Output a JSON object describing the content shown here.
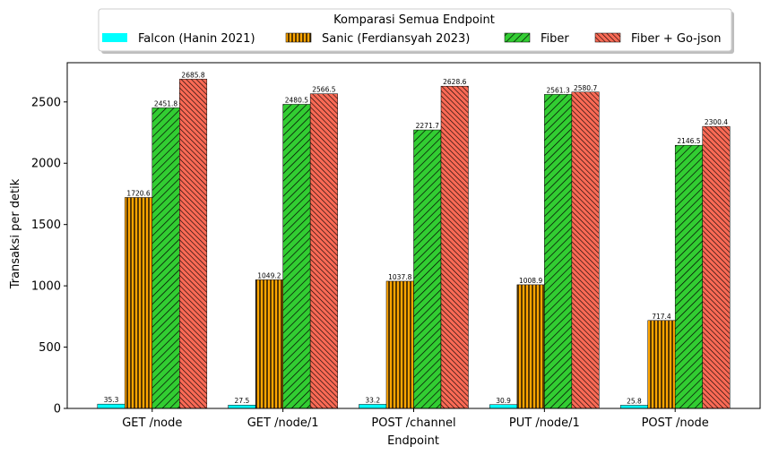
{
  "chart_data": {
    "type": "bar",
    "title": "",
    "xlabel": "Endpoint",
    "ylabel": "Transaksi per detik",
    "categories": [
      "GET /node",
      "GET /node/1",
      "POST /channel",
      "PUT /node/1",
      "POST /node"
    ],
    "ylim": [
      0,
      2820
    ],
    "yticks": [
      0,
      500,
      1000,
      1500,
      2000,
      2500
    ],
    "grid": false,
    "legend": {
      "title": "Komparasi Semua Endpoint",
      "placement": "top-center, above plot"
    },
    "series": [
      {
        "name": "Falcon (Hanin 2021)",
        "color": "#00ffff",
        "hatch": "none",
        "values": [
          35.3,
          27.5,
          33.2,
          30.9,
          25.8
        ],
        "labels": [
          "35.3",
          "27.5",
          "33.2",
          "30.9",
          "25.8"
        ]
      },
      {
        "name": "Sanic (Ferdiansyah 2023)",
        "color": "#ffa500",
        "hatch": "vertical",
        "values": [
          1720.6,
          1049.2,
          1037.8,
          1008.9,
          717.4
        ],
        "labels": [
          "1720.6",
          "1049.2",
          "1037.8",
          "1008.9",
          "717.4"
        ]
      },
      {
        "name": "Fiber",
        "color": "#32cd32",
        "hatch": "diagonal",
        "values": [
          2451.8,
          2480.5,
          2271.7,
          2561.3,
          2146.5
        ],
        "labels": [
          "2451.8",
          "2480.5",
          "2271.7",
          "2561.3",
          "2146.5"
        ]
      },
      {
        "name": "Fiber + Go-json",
        "color": "#fa6a55",
        "hatch": "dense-diagonal",
        "values": [
          2685.8,
          2566.5,
          2628.6,
          2580.7,
          2300.4
        ],
        "labels": [
          "2685.8",
          "2566.5",
          "2628.6",
          "2580.7",
          "2300.4"
        ]
      }
    ]
  }
}
